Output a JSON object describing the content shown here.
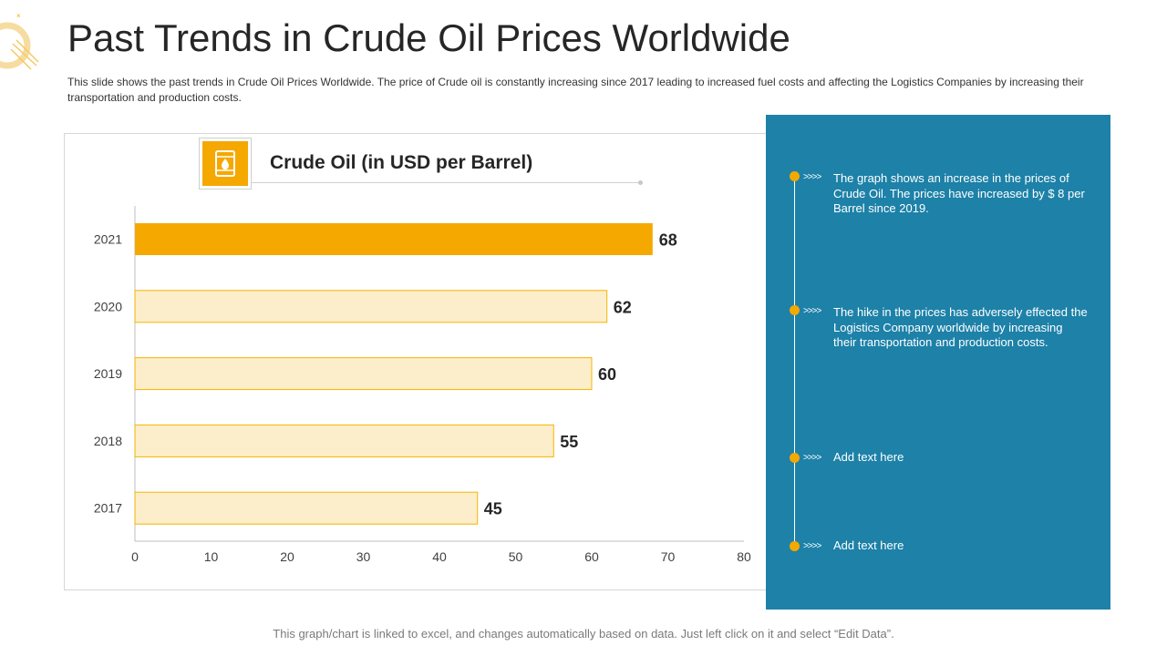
{
  "header": {
    "title": "Past Trends in Crude Oil Prices Worldwide",
    "subtitle": "This slide shows the past trends in Crude Oil Prices Worldwide. The price of Crude oil is constantly increasing since 2017 leading to increased fuel costs and affecting the Logistics Companies by increasing their transportation and production costs."
  },
  "chart_data": {
    "type": "bar",
    "orientation": "horizontal",
    "title": "Crude Oil (in USD per Barrel)",
    "categories": [
      "2021",
      "2020",
      "2019",
      "2018",
      "2017"
    ],
    "values": [
      68,
      62,
      60,
      55,
      45
    ],
    "highlight": "2021",
    "xlim": [
      0,
      80
    ],
    "xticks": [
      0,
      10,
      20,
      30,
      40,
      50,
      60,
      70,
      80
    ],
    "xlabel": "",
    "ylabel": "",
    "grid": false,
    "colors": {
      "highlight": "#f5a800",
      "bar": "#fdeecb",
      "bar_border": "#f5b400",
      "axis": "#bfbfbf"
    }
  },
  "panel": {
    "chevrons": ">>>>",
    "items": [
      {
        "text": "The graph shows an increase in the prices of Crude Oil. The prices have increased by $ 8 per Barrel since 2019."
      },
      {
        "text": "The hike in the prices has adversely effected the Logistics Company worldwide by increasing their transportation and production costs."
      },
      {
        "text": "Add text here"
      },
      {
        "text": "Add text here"
      }
    ],
    "color": "#1d81a8",
    "accent": "#f5a800"
  },
  "footer": {
    "note": "This graph/chart is linked to excel, and changes automatically based on data. Just left click on it and select “Edit Data”."
  }
}
